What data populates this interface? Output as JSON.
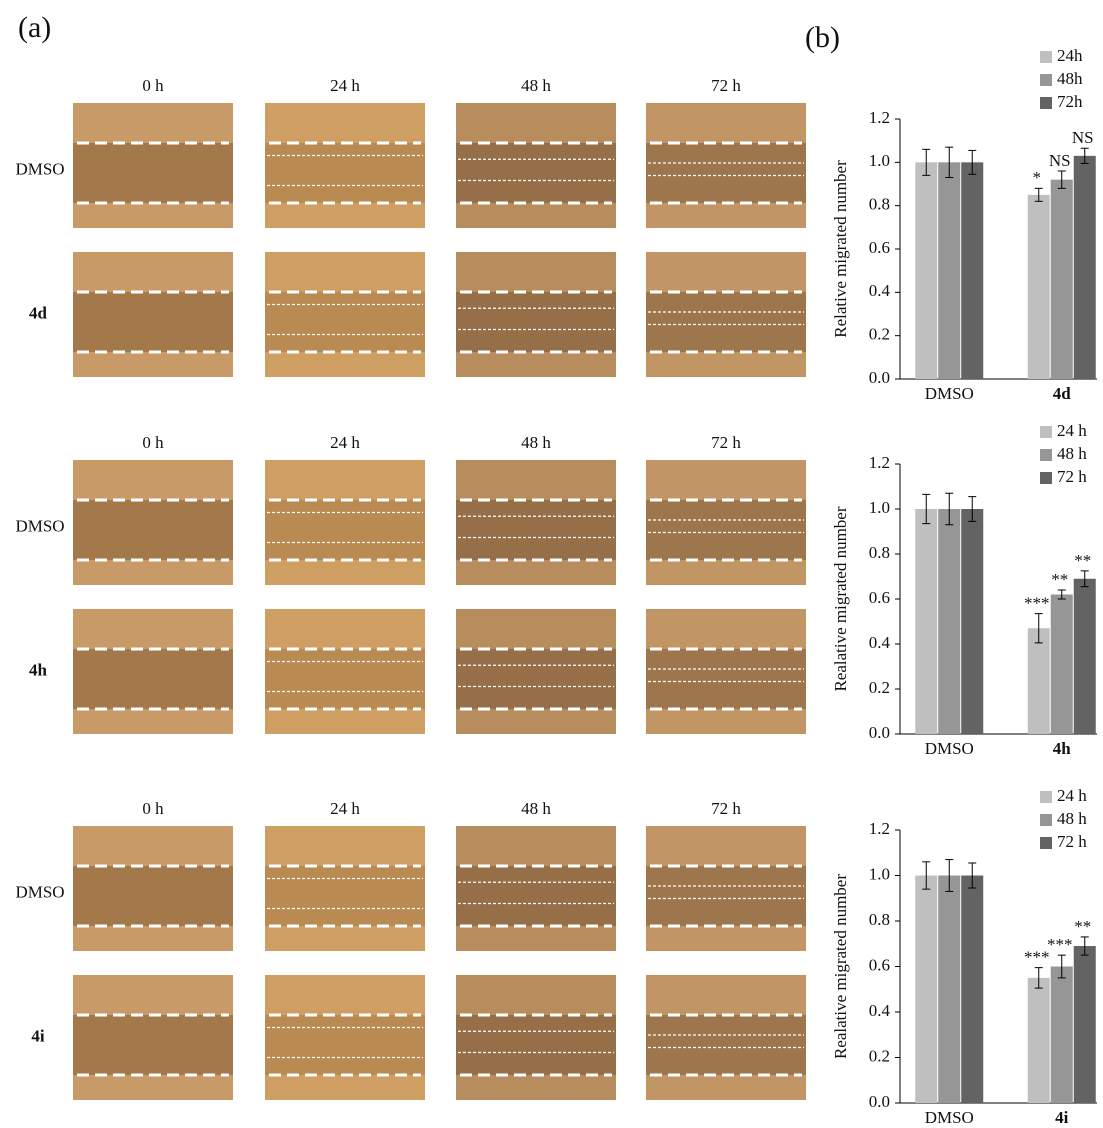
{
  "panel_a": {
    "label": "(a)",
    "groups": [
      {
        "columns": [
          "0 h",
          "24 h",
          "48 h",
          "72 h"
        ],
        "rows": [
          "DMSO",
          "4d"
        ]
      },
      {
        "columns": [
          "0 h",
          "24 h",
          "48 h",
          "72 h"
        ],
        "rows": [
          "DMSO",
          "4h"
        ]
      },
      {
        "columns": [
          "0 h",
          "24 h",
          "48 h",
          "72 h"
        ],
        "rows": [
          "DMSO",
          "4i"
        ]
      }
    ]
  },
  "panel_b": {
    "label": "(b)"
  },
  "chart_data": [
    {
      "type": "bar",
      "y_label": "Relative migrated number",
      "categories": [
        "DMSO",
        "4d"
      ],
      "series": [
        {
          "name": "24h",
          "color": "#bfbfbf",
          "values": [
            1.0,
            0.85
          ],
          "errors": [
            0.06,
            0.03
          ],
          "value_annotations": [
            null,
            "*"
          ]
        },
        {
          "name": "48h",
          "color": "#969696",
          "values": [
            1.0,
            0.92
          ],
          "errors": [
            0.07,
            0.04
          ],
          "value_annotations": [
            null,
            "NS"
          ]
        },
        {
          "name": "72h",
          "color": "#636363",
          "values": [
            1.0,
            1.03
          ],
          "errors": [
            0.055,
            0.035
          ],
          "value_annotations": [
            null,
            "NS"
          ]
        }
      ],
      "ylim": [
        0,
        1.2
      ],
      "yticks": [
        {
          "value": 0,
          "label": "0.0"
        },
        {
          "value": 0.2,
          "label": "0.2"
        },
        {
          "value": 0.4,
          "label": "0.4"
        },
        {
          "value": 0.6,
          "label": "0.6"
        },
        {
          "value": 0.8,
          "label": "0.8"
        },
        {
          "value": 1,
          "label": "1.0"
        },
        {
          "value": 1.2,
          "label": "1.2"
        }
      ],
      "legend": "top-right"
    },
    {
      "type": "bar",
      "y_label": "Realative migrated number",
      "categories": [
        "DMSO",
        "4h"
      ],
      "series": [
        {
          "name": "24 h",
          "color": "#bfbfbf",
          "values": [
            1.0,
            0.47
          ],
          "errors": [
            0.065,
            0.065
          ],
          "value_annotations": [
            null,
            "***"
          ]
        },
        {
          "name": "48 h",
          "color": "#969696",
          "values": [
            1.0,
            0.62
          ],
          "errors": [
            0.07,
            0.02
          ],
          "value_annotations": [
            null,
            "**"
          ]
        },
        {
          "name": "72 h",
          "color": "#636363",
          "values": [
            1.0,
            0.69
          ],
          "errors": [
            0.055,
            0.035
          ],
          "value_annotations": [
            null,
            "**"
          ]
        }
      ],
      "ylim": [
        0,
        1.2
      ],
      "yticks": [
        {
          "value": 0,
          "label": "0.0"
        },
        {
          "value": 0.2,
          "label": "0.2"
        },
        {
          "value": 0.4,
          "label": "0.4"
        },
        {
          "value": 0.6,
          "label": "0.6"
        },
        {
          "value": 0.8,
          "label": "0.8"
        },
        {
          "value": 1,
          "label": "1.0"
        },
        {
          "value": 1.2,
          "label": "1.2"
        }
      ],
      "legend": "top-right"
    },
    {
      "type": "bar",
      "y_label": "Realative migrated number",
      "categories": [
        "DMSO",
        "4i"
      ],
      "series": [
        {
          "name": "24 h",
          "color": "#bfbfbf",
          "values": [
            1.0,
            0.55
          ],
          "errors": [
            0.06,
            0.045
          ],
          "value_annotations": [
            null,
            "***"
          ]
        },
        {
          "name": "48 h",
          "color": "#969696",
          "values": [
            1.0,
            0.6
          ],
          "errors": [
            0.07,
            0.05
          ],
          "value_annotations": [
            null,
            "***"
          ]
        },
        {
          "name": "72 h",
          "color": "#636363",
          "values": [
            1.0,
            0.69
          ],
          "errors": [
            0.055,
            0.04
          ],
          "value_annotations": [
            null,
            "**"
          ]
        }
      ],
      "ylim": [
        0,
        1.2
      ],
      "yticks": [
        {
          "value": 0,
          "label": "0.0"
        },
        {
          "value": 0.2,
          "label": "0.2"
        },
        {
          "value": 0.4,
          "label": "0.4"
        },
        {
          "value": 0.6,
          "label": "0.6"
        },
        {
          "value": 0.8,
          "label": "0.8"
        },
        {
          "value": 1,
          "label": "1.0"
        },
        {
          "value": 1.2,
          "label": "1.2"
        }
      ],
      "legend": "top-right"
    }
  ]
}
